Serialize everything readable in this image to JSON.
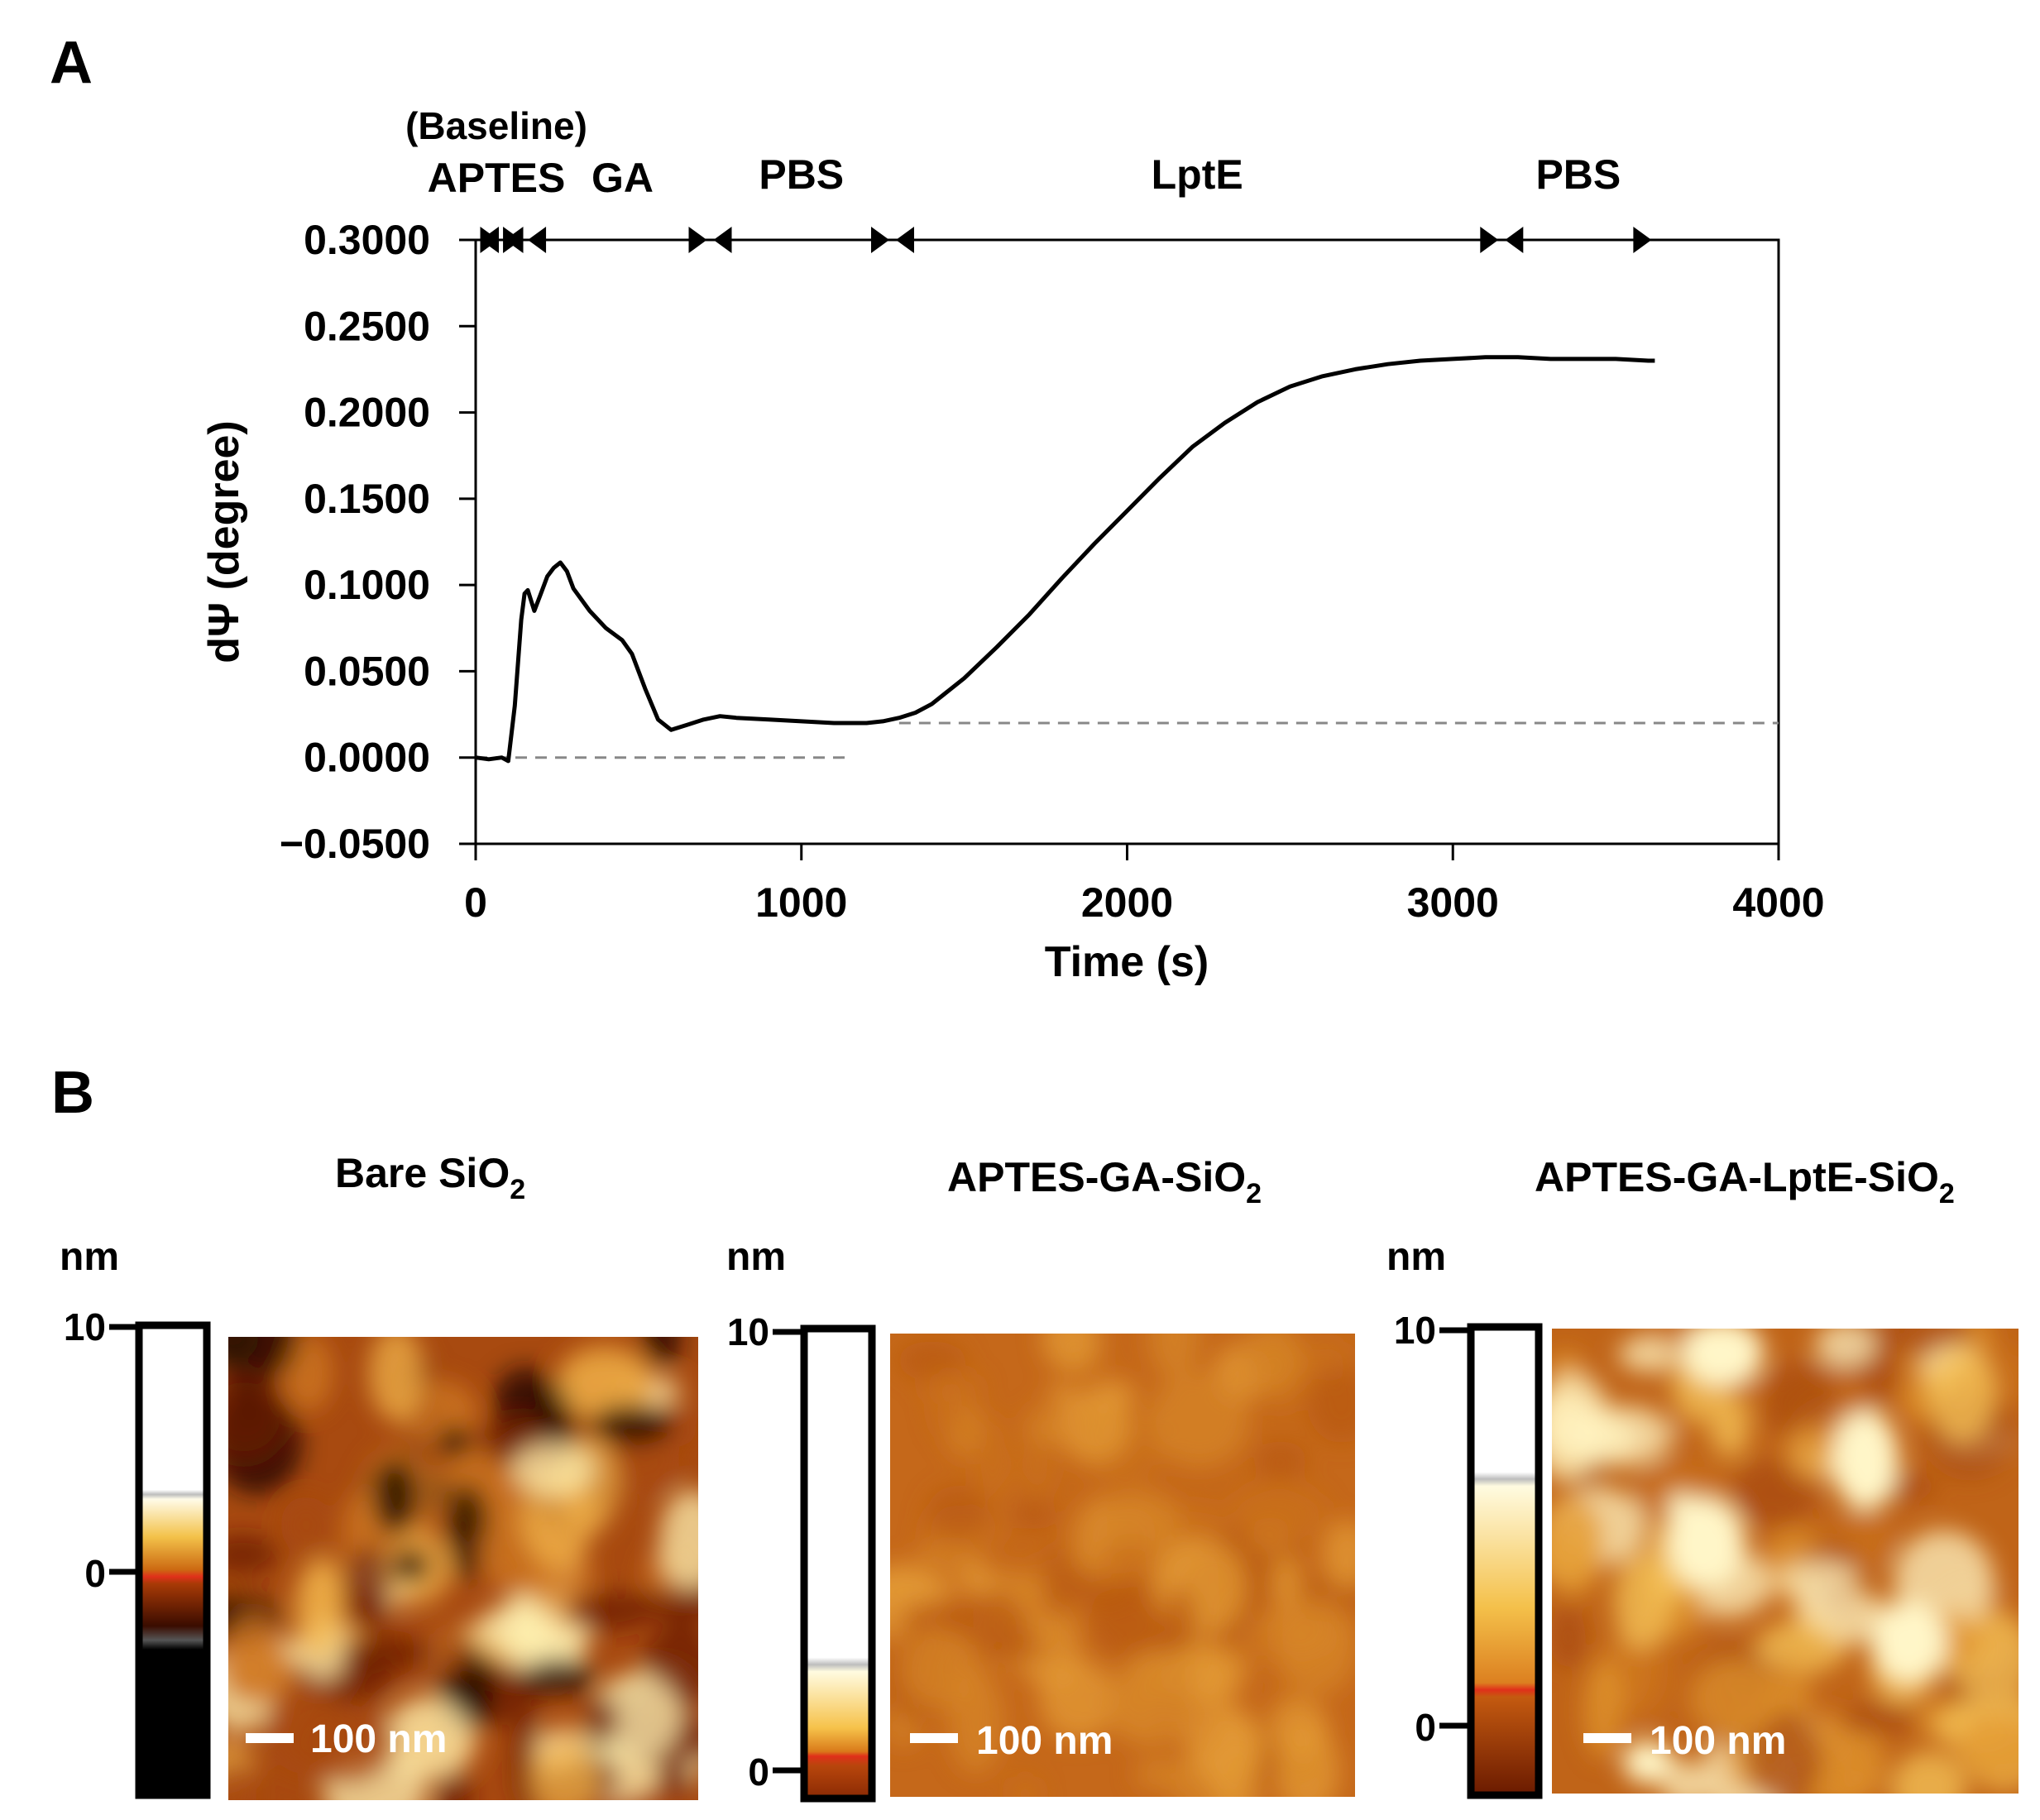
{
  "panel_a": {
    "label": "A"
  },
  "panel_b": {
    "label": "B",
    "images": [
      {
        "title": "Bare SiO",
        "title_subscript": "2",
        "colorbar_unit": "nm",
        "colorbar_ticks": [
          "10",
          "0"
        ],
        "scalebar_label": "100 nm",
        "description": "AFM height image of bare SiO2 surface",
        "colormap": [
          "#1a0500",
          "#6b1d04",
          "#a84a10",
          "#d07a24",
          "#f0b24a",
          "#fff0b0"
        ]
      },
      {
        "title": "APTES-GA-SiO",
        "title_subscript": "2",
        "colorbar_unit": "nm",
        "colorbar_ticks": [
          "10",
          "0"
        ],
        "scalebar_label": "100 nm",
        "description": "AFM height image of APTES-GA-SiO2 surface",
        "colormap": [
          "#b85a12",
          "#c9701c",
          "#d68528",
          "#e39b36"
        ]
      },
      {
        "title": "APTES-GA-LptE-SiO",
        "title_subscript": "2",
        "colorbar_unit": "nm",
        "colorbar_ticks": [
          "10",
          "0"
        ],
        "scalebar_label": "100 nm",
        "description": "AFM height image of APTES-GA-LptE-SiO2 surface",
        "colormap": [
          "#a84a10",
          "#c9701c",
          "#e0952f",
          "#f6c45a",
          "#fff3c0"
        ]
      }
    ]
  },
  "chart_data": {
    "type": "line",
    "xlabel": "Time (s)",
    "ylabel": "dΨ (degree)",
    "xlim": [
      0,
      4000
    ],
    "ylim": [
      -0.05,
      0.3
    ],
    "xticks": [
      0,
      1000,
      2000,
      3000,
      4000
    ],
    "xtick_labels": [
      "0",
      "1000",
      "2000",
      "3000",
      "4000"
    ],
    "yticks": [
      -0.05,
      0,
      0.05,
      0.1,
      0.15,
      0.2,
      0.25,
      0.3
    ],
    "ytick_labels": [
      "−0.0500",
      "0.0000",
      "0.0500",
      "0.1000",
      "0.1500",
      "0.2000",
      "0.2500",
      "0.3000"
    ],
    "series": [
      {
        "name": "dΨ",
        "x": [
          0,
          40,
          80,
          100,
          120,
          140,
          150,
          160,
          180,
          200,
          220,
          240,
          260,
          280,
          300,
          350,
          400,
          450,
          480,
          520,
          560,
          600,
          650,
          700,
          750,
          800,
          900,
          1000,
          1100,
          1200,
          1250,
          1300,
          1350,
          1400,
          1500,
          1600,
          1700,
          1800,
          1900,
          2000,
          2100,
          2200,
          2300,
          2400,
          2500,
          2600,
          2700,
          2800,
          2900,
          3000,
          3100,
          3200,
          3300,
          3400,
          3500,
          3600,
          3620
        ],
        "y": [
          0,
          -0.001,
          0,
          -0.002,
          0.03,
          0.08,
          0.095,
          0.097,
          0.085,
          0.095,
          0.105,
          0.11,
          0.113,
          0.108,
          0.098,
          0.085,
          0.075,
          0.068,
          0.06,
          0.04,
          0.022,
          0.016,
          0.019,
          0.022,
          0.024,
          0.023,
          0.022,
          0.021,
          0.02,
          0.02,
          0.021,
          0.023,
          0.026,
          0.031,
          0.046,
          0.064,
          0.083,
          0.104,
          0.124,
          0.143,
          0.162,
          0.18,
          0.194,
          0.206,
          0.215,
          0.221,
          0.225,
          0.228,
          0.23,
          0.231,
          0.232,
          0.232,
          0.231,
          0.231,
          0.231,
          0.23,
          0.23
        ]
      }
    ],
    "reference_lines": [
      {
        "y": 0.0,
        "x_range": [
          0,
          1150
        ],
        "style": "dashed"
      },
      {
        "y": 0.02,
        "x_range": [
          1300,
          4000
        ],
        "style": "dashed"
      }
    ],
    "phases": [
      {
        "label": "(Baseline)",
        "x_range": [
          0,
          80
        ]
      },
      {
        "label": "APTES",
        "x_range": [
          80,
          150
        ]
      },
      {
        "label": "GA",
        "x_range": [
          150,
          720
        ]
      },
      {
        "label": "PBS",
        "x_range": [
          720,
          1280
        ]
      },
      {
        "label": "LptE",
        "x_range": [
          1280,
          3150
        ]
      },
      {
        "label": "PBS",
        "x_range": [
          3150,
          3620
        ]
      }
    ]
  }
}
